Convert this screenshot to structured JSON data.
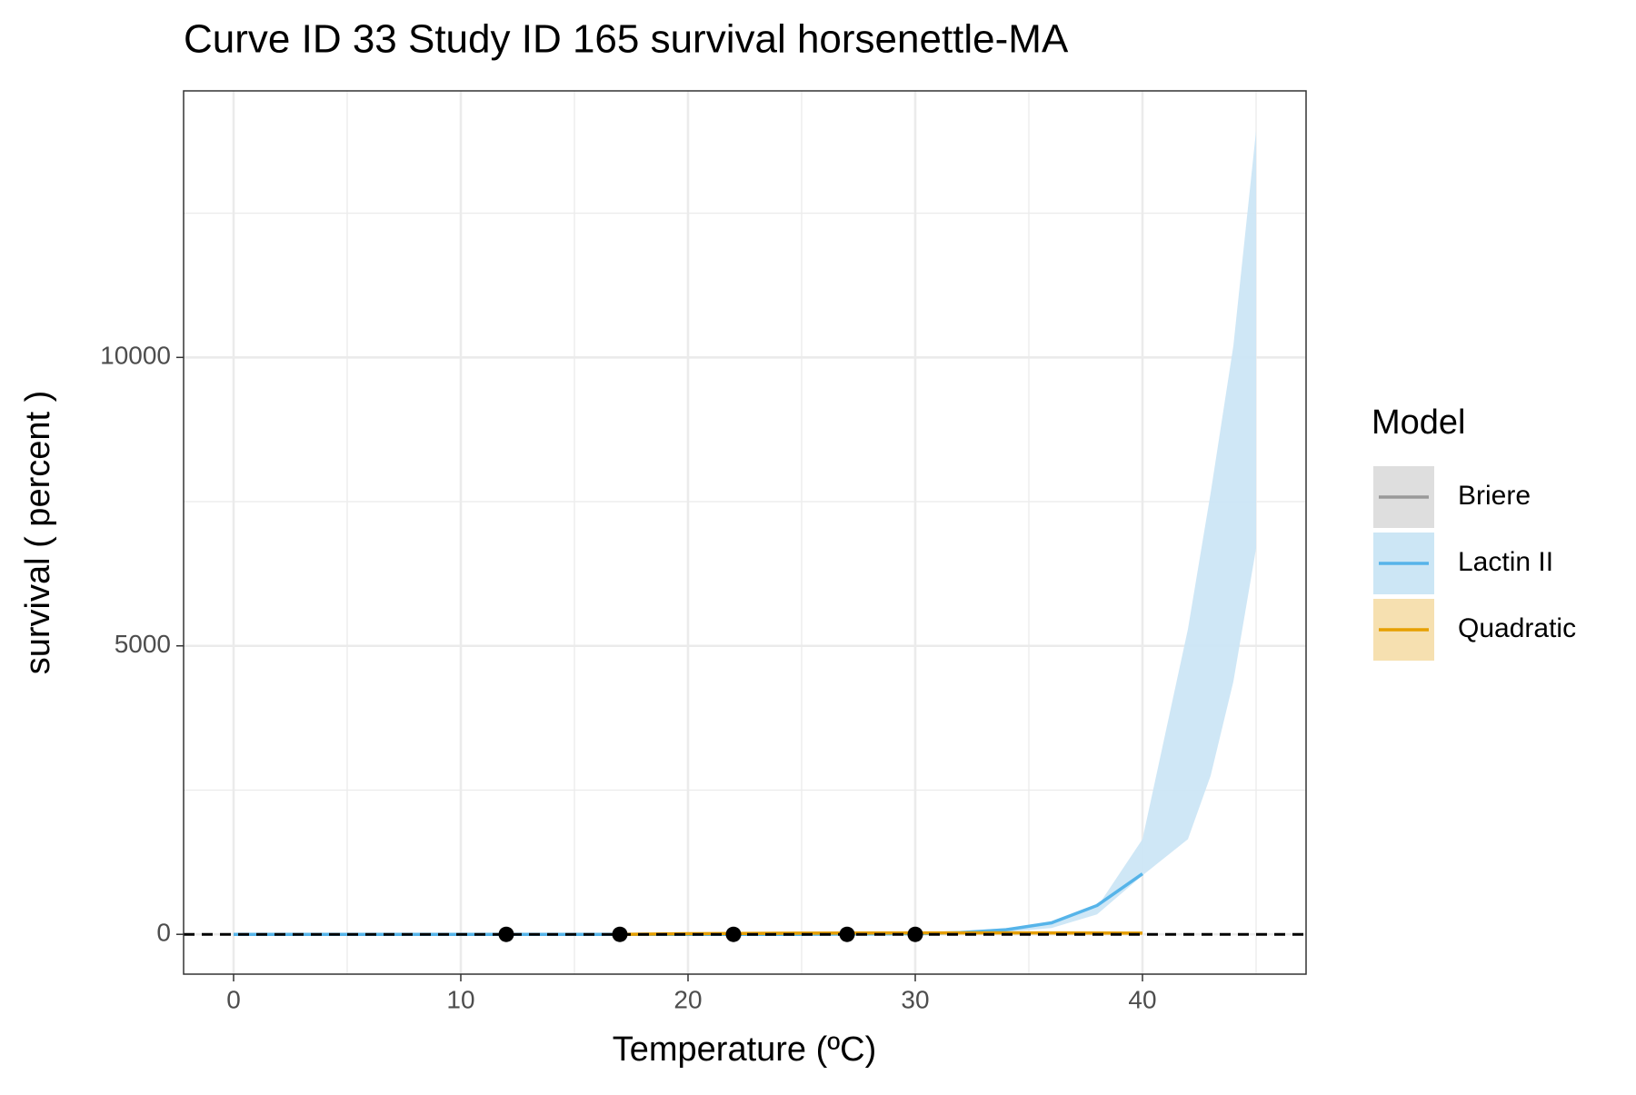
{
  "chart_data": {
    "type": "line",
    "title": "Curve ID 33 Study ID 165 survival horsenettle-MA",
    "x_label": "Temperature (ºC)",
    "y_label": "survival ( percent )",
    "legend_title": "Model",
    "xlim": [
      -2.2,
      47.2
    ],
    "ylim": [
      -690,
      14620
    ],
    "xticks": [
      0,
      10,
      20,
      30,
      40
    ],
    "yticks": [
      0,
      5000,
      10000
    ],
    "x_minor_ticks": [
      5,
      15,
      25,
      35,
      45
    ],
    "y_minor_ticks": [
      2500,
      7500,
      12500
    ],
    "grid": true,
    "hline": 0,
    "series": [
      {
        "name": "Briere",
        "color": "#999999",
        "fill": "#dedede"
      },
      {
        "name": "Lactin II",
        "color": "#56b4e9",
        "fill": "#cce6f5",
        "x": [
          0,
          5,
          10,
          15,
          20,
          25,
          30,
          32,
          34,
          36,
          38,
          40
        ],
        "values": [
          0,
          0,
          0,
          0,
          0,
          0,
          10,
          30,
          80,
          200,
          500,
          1050
        ],
        "ribbon": {
          "x": [
            30,
            32,
            34,
            36,
            38,
            40,
            42,
            43,
            44,
            45
          ],
          "lower": [
            0,
            10,
            40,
            110,
            345,
            1020,
            1650,
            2750,
            4380,
            6690
          ],
          "upper": [
            20,
            50,
            110,
            200,
            470,
            1650,
            5290,
            7650,
            10200,
            13930
          ]
        }
      },
      {
        "name": "Quadratic",
        "color": "#e69f00",
        "fill": "#f6e0b0",
        "x": [
          17,
          20,
          25,
          30,
          35,
          40
        ],
        "values": [
          0,
          10,
          20,
          25,
          25,
          20
        ]
      }
    ],
    "points": {
      "color": "#000000",
      "x": [
        12,
        17,
        22,
        27,
        30
      ],
      "values": [
        0,
        0,
        0,
        0,
        0
      ]
    }
  }
}
